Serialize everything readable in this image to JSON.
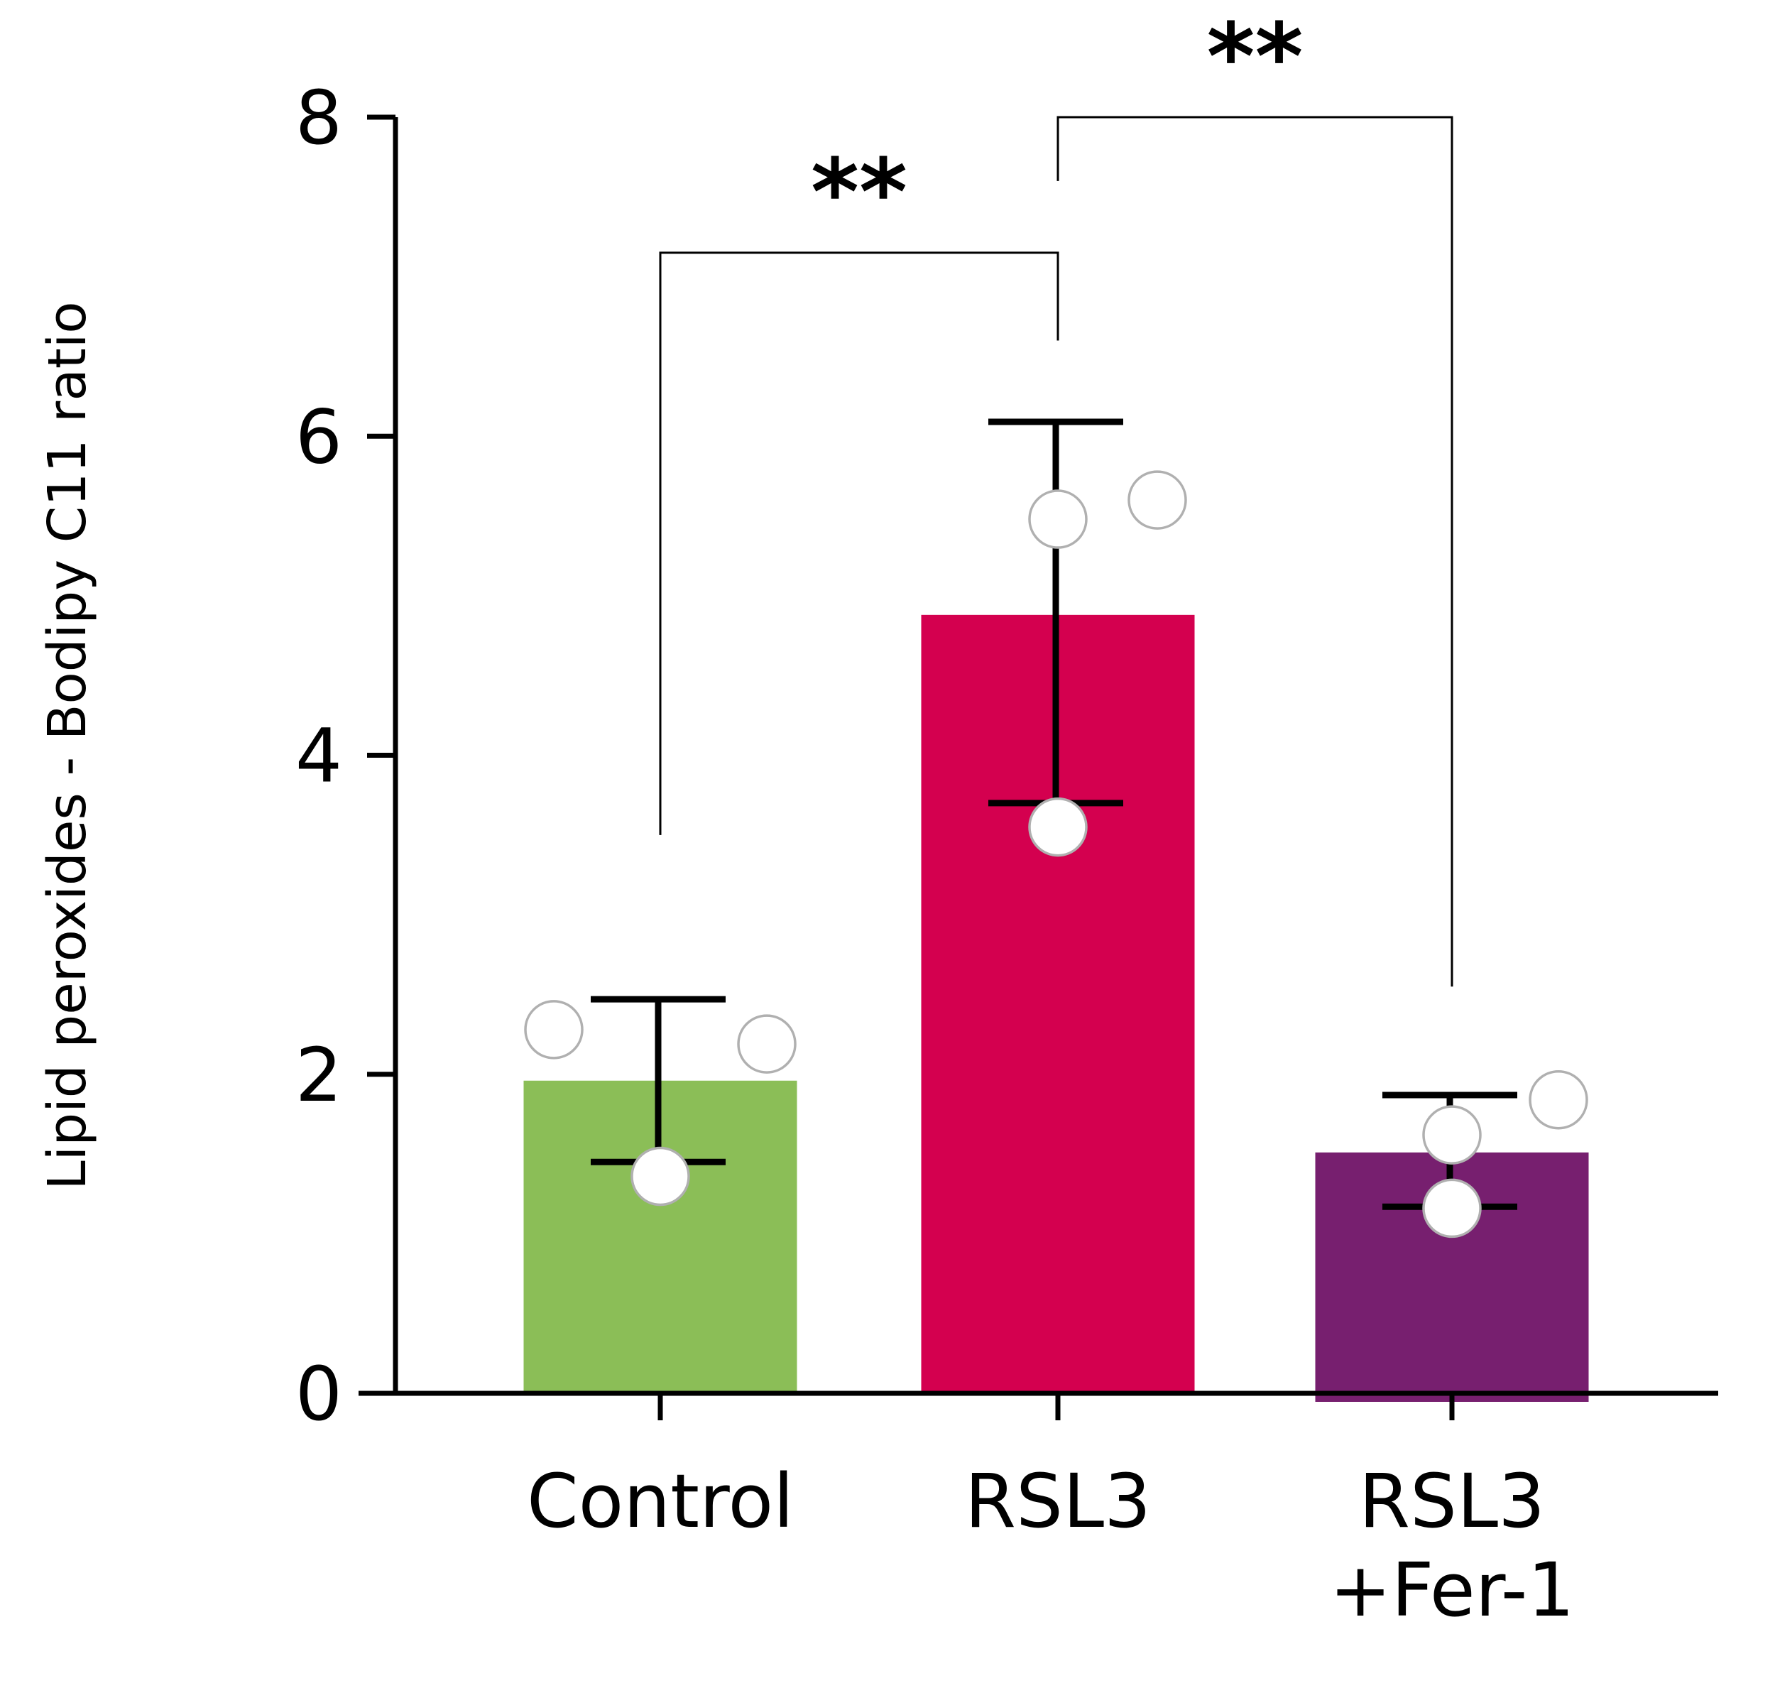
{
  "chart_data": {
    "type": "bar",
    "title": "",
    "xlabel": "",
    "ylabel": "Lipid peroxides - Bodipy C11 ratio",
    "ylim": [
      0,
      8
    ],
    "yticks": [
      "0",
      "2",
      "4",
      "6",
      "8"
    ],
    "categories": [
      [
        "Control"
      ],
      [
        "RSL3"
      ],
      [
        "RSL3",
        "+Fer-1"
      ]
    ],
    "values": [
      1.96,
      4.88,
      1.51
    ],
    "error_upper": [
      2.47,
      6.09,
      1.87
    ],
    "error_lower": [
      1.45,
      3.7,
      1.17
    ],
    "points": [
      [
        2.28,
        1.36,
        2.19
      ],
      [
        5.48,
        3.55,
        5.6
      ],
      [
        1.62,
        1.16,
        1.84
      ]
    ],
    "colors": [
      "#8bbe57",
      "#d4004f",
      "#771f6f"
    ],
    "significance": [
      {
        "from": 0,
        "to": 1,
        "label": "**"
      },
      {
        "from": 1,
        "to": 2,
        "label": "**"
      }
    ],
    "grid": false,
    "legend": "none"
  }
}
